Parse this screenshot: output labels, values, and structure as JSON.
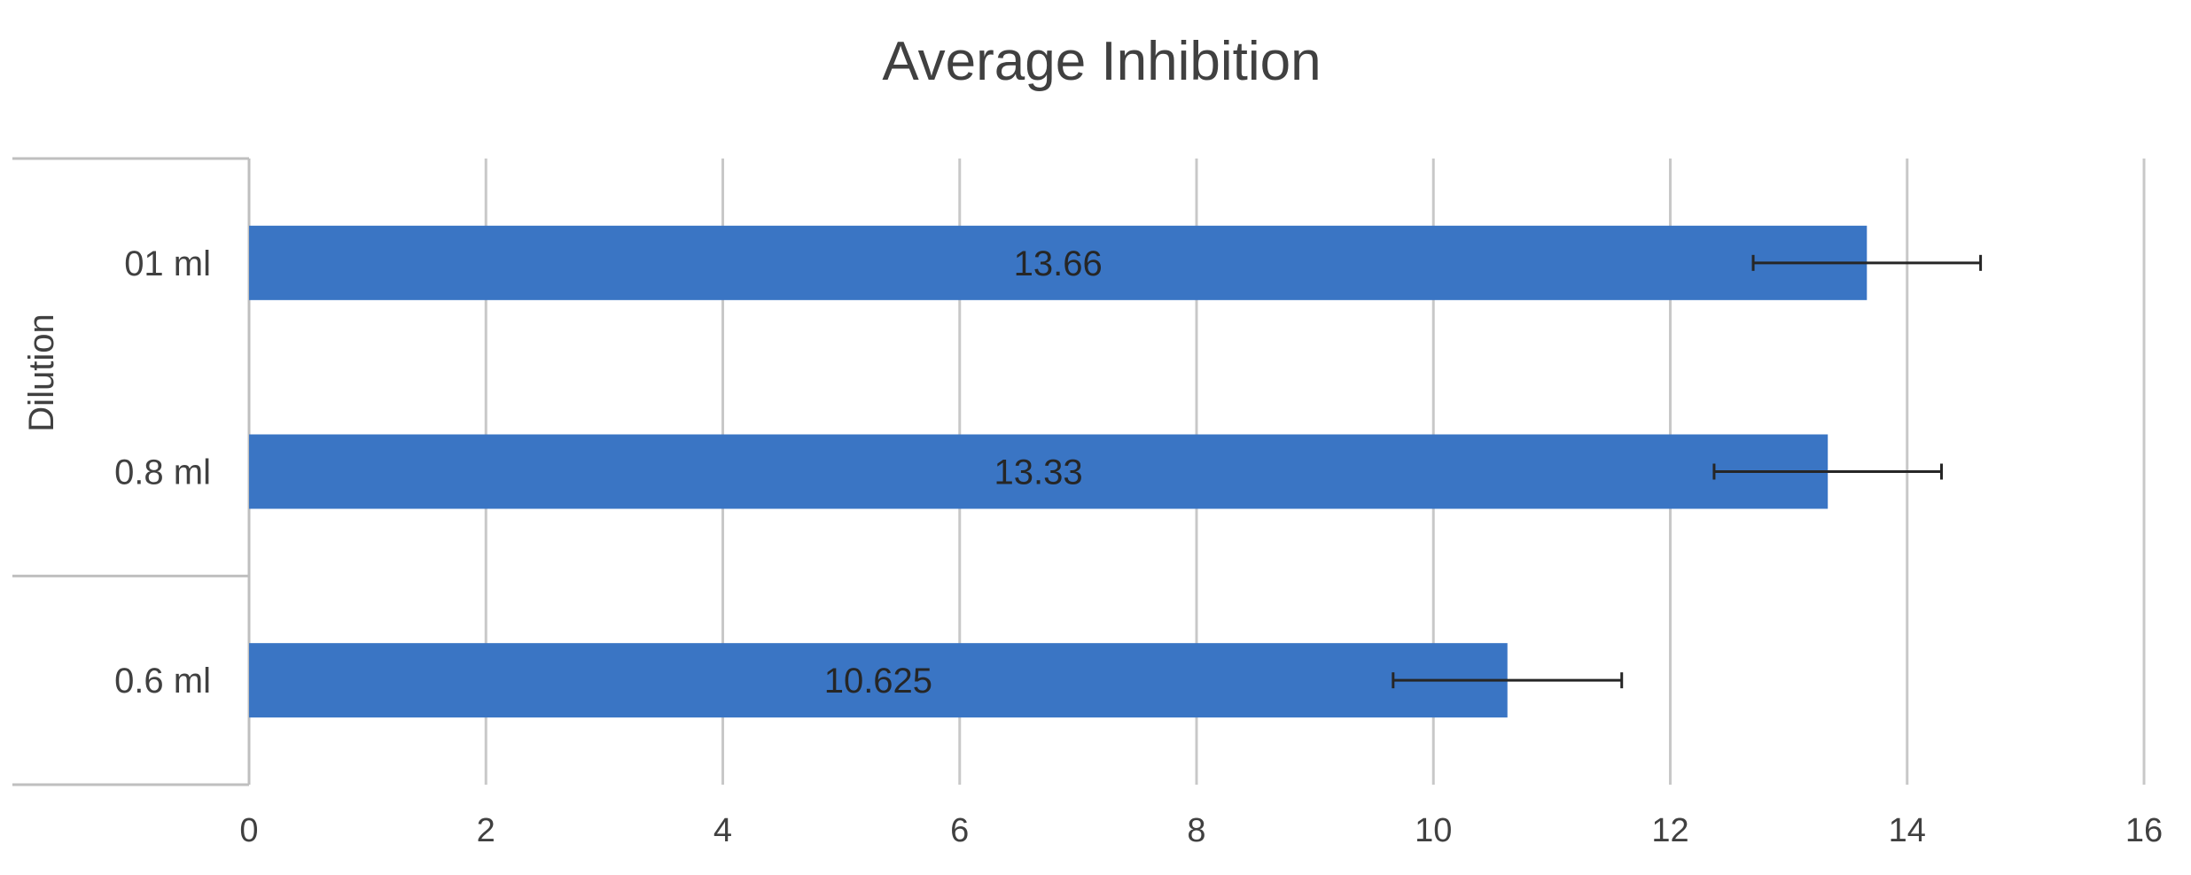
{
  "chart_data": {
    "type": "bar",
    "orientation": "horizontal",
    "title": "Average Inhibition",
    "xlabel": "",
    "ylabel": "Dilution",
    "categories": [
      "01 ml",
      "0.8 ml",
      "0.6 ml"
    ],
    "values": [
      13.66,
      13.33,
      10.625
    ],
    "data_labels": [
      "13.66",
      "13.33",
      "10.625"
    ],
    "error_bars": [
      {
        "low": 12.7,
        "high": 14.62
      },
      {
        "low": 12.37,
        "high": 14.29
      },
      {
        "low": 9.66,
        "high": 11.59
      }
    ],
    "xlim": [
      0,
      16
    ],
    "x_ticks": [
      0,
      2,
      4,
      6,
      8,
      10,
      12,
      14,
      16
    ],
    "x_tick_labels": [
      "0",
      "2",
      "4",
      "6",
      "8",
      "10",
      "12",
      "14",
      "16"
    ],
    "grid": "vertical",
    "legend": "none",
    "colors": {
      "bar": "#3A75C4",
      "grid": "#C8C8C8",
      "axis": "#BFBFBF",
      "error_bar": "#262626",
      "text": "#404040"
    }
  }
}
